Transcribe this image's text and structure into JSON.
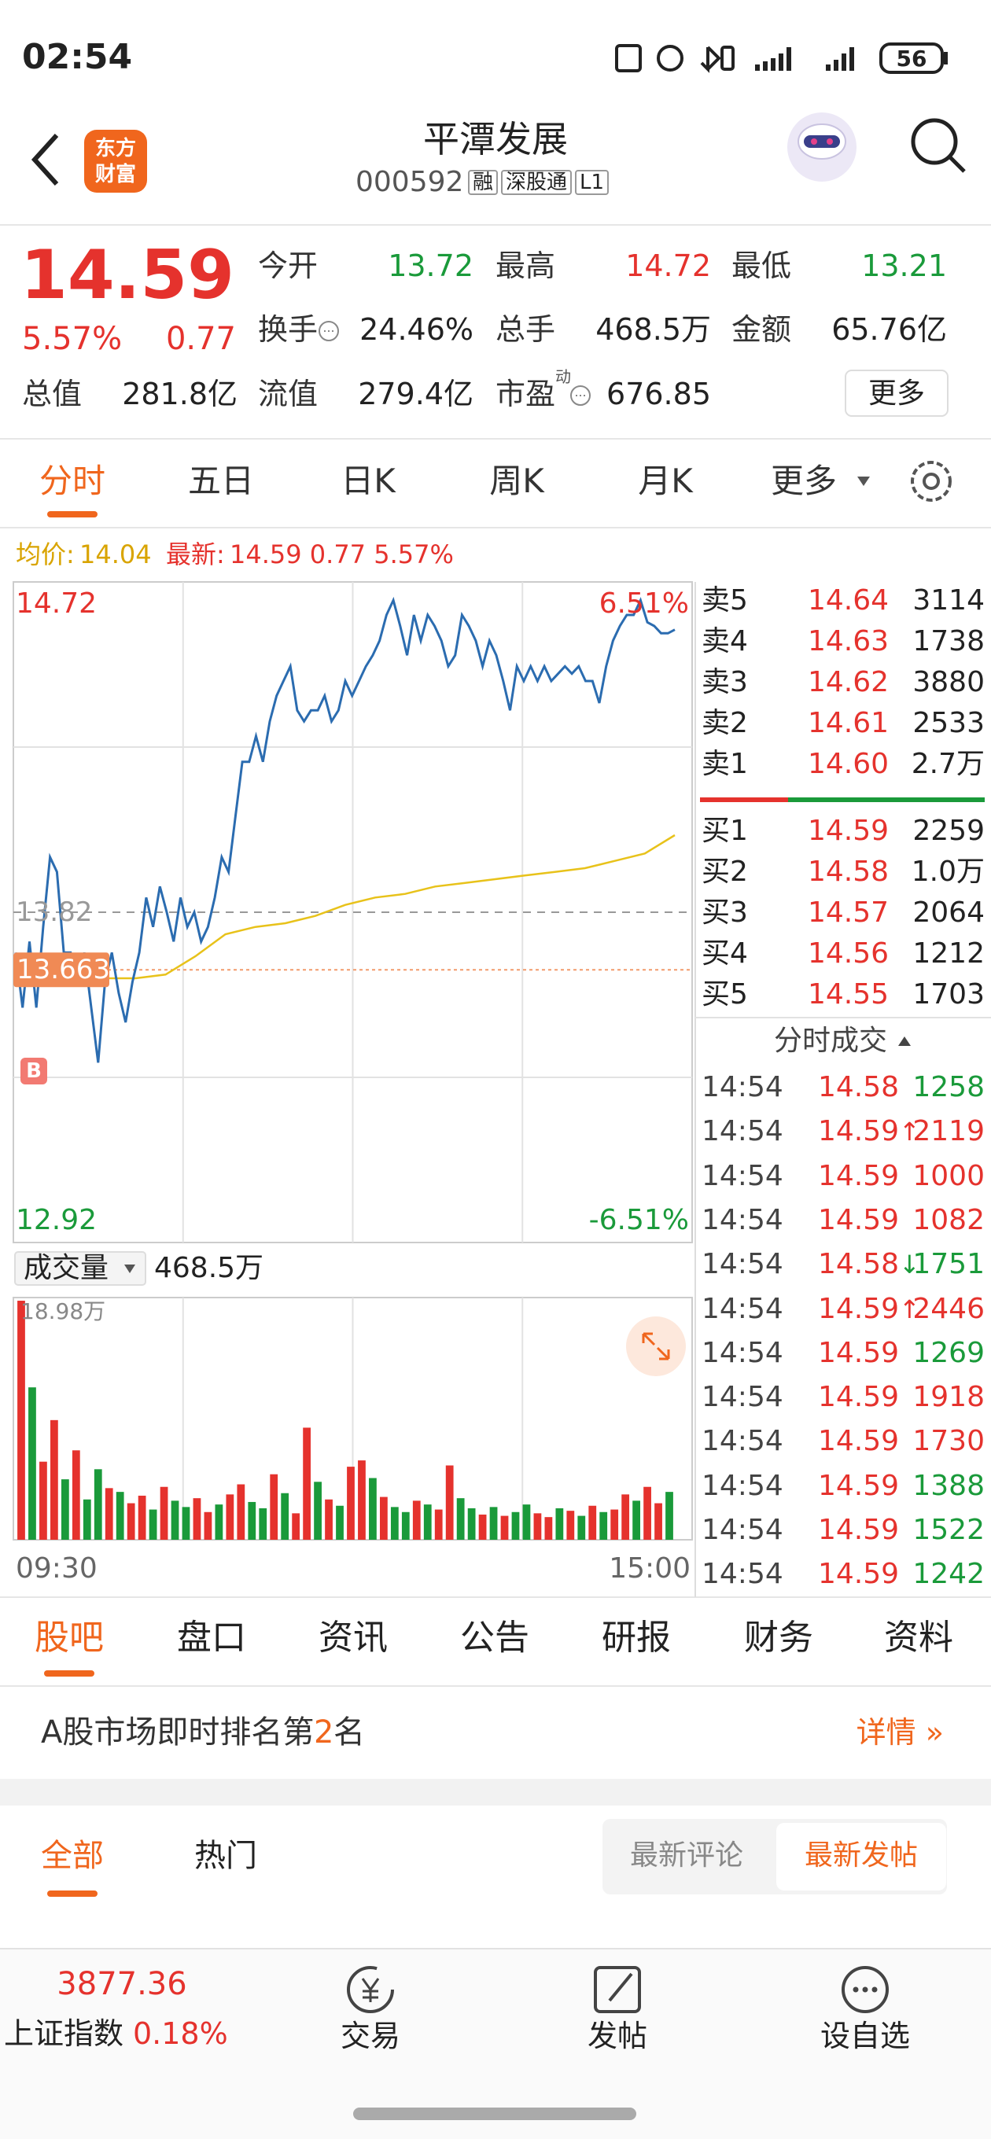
{
  "status_bar": {
    "time": "02:54",
    "battery": "56"
  },
  "header": {
    "logo": [
      "东方",
      "财富"
    ],
    "title": "平潭发展",
    "code": "000592",
    "tags": [
      "融",
      "深股通",
      "L1"
    ]
  },
  "quote": {
    "price": "14.59",
    "change_pct": "5.57%",
    "change": "0.77",
    "color": "#e5322d",
    "stats": [
      {
        "label": "今开",
        "value": "13.72",
        "color": "#1a9a3a"
      },
      {
        "label": "最高",
        "value": "14.72",
        "color": "#e5322d"
      },
      {
        "label": "最低",
        "value": "13.21",
        "color": "#1a9a3a"
      },
      {
        "label": "换手",
        "value": "24.46%",
        "color": "#222222"
      },
      {
        "label": "总手",
        "value": "468.5万",
        "color": "#222222"
      },
      {
        "label": "金额",
        "value": "65.76亿",
        "color": "#222222"
      },
      {
        "label": "总值",
        "value": "281.8亿",
        "color": "#222222"
      },
      {
        "label": "流值",
        "value": "279.4亿",
        "color": "#222222"
      },
      {
        "label": "市盈",
        "sup": "动",
        "value": "676.85",
        "color": "#222222"
      }
    ],
    "more": "更多"
  },
  "chart_tabs": {
    "items": [
      "分时",
      "五日",
      "日K",
      "周K",
      "月K",
      "更多"
    ],
    "active": 0
  },
  "info_line": {
    "avg_label": "均价:",
    "avg": "14.04",
    "avg_color": "#d9a400",
    "latest_label": "最新:",
    "latest": "14.59 0.77 5.57%",
    "latest_color": "#e5322d"
  },
  "chart_data": {
    "type": "line",
    "ylim": [
      12.92,
      14.72
    ],
    "top_pct": "6.51%",
    "bottom_pct": "-6.51%",
    "prev_close": 13.82,
    "avg_marker": 13.663,
    "buy_marker": "B",
    "x_labels": [
      "09:30",
      "15:00"
    ],
    "price_line": {
      "color": "#2b6cb0",
      "values": [
        13.71,
        13.56,
        13.74,
        13.56,
        13.78,
        13.97,
        13.93,
        13.71,
        13.71,
        13.63,
        13.71,
        13.56,
        13.41,
        13.63,
        13.71,
        13.6,
        13.52,
        13.63,
        13.71,
        13.86,
        13.78,
        13.89,
        13.82,
        13.74,
        13.86,
        13.78,
        13.82,
        13.74,
        13.78,
        13.86,
        13.97,
        13.93,
        14.08,
        14.23,
        14.23,
        14.3,
        14.23,
        14.34,
        14.41,
        14.45,
        14.49,
        14.37,
        14.34,
        14.37,
        14.37,
        14.41,
        14.34,
        14.37,
        14.45,
        14.41,
        14.45,
        14.49,
        14.52,
        14.56,
        14.63,
        14.67,
        14.6,
        14.52,
        14.63,
        14.56,
        14.63,
        14.6,
        14.56,
        14.49,
        14.52,
        14.63,
        14.6,
        14.56,
        14.49,
        14.56,
        14.52,
        14.45,
        14.37,
        14.49,
        14.45,
        14.49,
        14.45,
        14.49,
        14.45,
        14.47,
        14.49,
        14.47,
        14.49,
        14.45,
        14.45,
        14.39,
        14.49,
        14.56,
        14.6,
        14.63,
        14.63,
        14.67,
        14.61,
        14.6,
        14.58,
        14.58,
        14.59
      ]
    },
    "avg_line": {
      "color": "#e8c21a",
      "values": [
        13.66,
        13.65,
        13.64,
        13.64,
        13.64,
        13.65,
        13.7,
        13.76,
        13.78,
        13.79,
        13.81,
        13.84,
        13.86,
        13.87,
        13.89,
        13.9,
        13.91,
        13.92,
        13.93,
        13.94,
        13.96,
        13.98,
        14.03
      ]
    }
  },
  "volume_chart": {
    "label": "成交量",
    "total": "468.5万",
    "ymax": {
      "value": 18.98,
      "label": "18.98万"
    },
    "up_color": "#e5322d",
    "down_color": "#1a9a3a",
    "values": [
      18.98,
      12.1,
      6.2,
      9.5,
      4.8,
      7.1,
      3.2,
      5.6,
      4.1,
      3.8,
      2.9,
      3.5,
      2.4,
      4.2,
      3.1,
      2.6,
      3.3,
      2.2,
      2.8,
      3.6,
      4.4,
      3.0,
      2.5,
      5.2,
      3.7,
      2.1,
      8.9,
      4.6,
      3.2,
      2.7,
      5.8,
      6.3,
      4.9,
      3.4,
      2.6,
      2.2,
      3.1,
      2.8,
      2.4,
      5.9,
      3.3,
      2.5,
      2.0,
      2.6,
      1.9,
      2.2,
      2.8,
      2.1,
      1.8,
      2.5,
      2.3,
      1.9,
      2.7,
      2.2,
      2.4,
      3.6,
      3.1,
      4.2,
      2.9,
      3.8
    ],
    "rising": [
      true,
      false,
      true,
      true,
      false,
      true,
      false,
      false,
      true,
      false,
      true,
      true,
      false,
      true,
      false,
      false,
      true,
      true,
      false,
      true,
      true,
      false,
      false,
      true,
      false,
      true,
      true,
      false,
      true,
      false,
      true,
      true,
      false,
      true,
      false,
      false,
      true,
      false,
      true,
      true,
      false,
      false,
      true,
      false,
      true,
      false,
      false,
      true,
      true,
      false,
      true,
      false,
      true,
      false,
      true,
      true,
      false,
      true,
      true,
      false
    ]
  },
  "order_book": {
    "asks": [
      {
        "label": "卖5",
        "price": "14.64",
        "volume": "3114"
      },
      {
        "label": "卖4",
        "price": "14.63",
        "volume": "1738"
      },
      {
        "label": "卖3",
        "price": "14.62",
        "volume": "3880"
      },
      {
        "label": "卖2",
        "price": "14.61",
        "volume": "2533"
      },
      {
        "label": "卖1",
        "price": "14.60",
        "volume": "2.7万"
      }
    ],
    "bids": [
      {
        "label": "买1",
        "price": "14.59",
        "volume": "2259"
      },
      {
        "label": "买2",
        "price": "14.58",
        "volume": "1.0万"
      },
      {
        "label": "买3",
        "price": "14.57",
        "volume": "2064"
      },
      {
        "label": "买4",
        "price": "14.56",
        "volume": "1212"
      },
      {
        "label": "买5",
        "price": "14.55",
        "volume": "1703"
      }
    ],
    "trades_title": "分时成交",
    "trades": [
      {
        "time": "14:54",
        "price": "14.58",
        "volume": "1258",
        "color": "#1a9a3a"
      },
      {
        "time": "14:54",
        "price": "14.59",
        "arrow": "↑",
        "volume": "2119",
        "color": "#e5322d"
      },
      {
        "time": "14:54",
        "price": "14.59",
        "volume": "1000",
        "color": "#e5322d"
      },
      {
        "time": "14:54",
        "price": "14.59",
        "volume": "1082",
        "color": "#e5322d"
      },
      {
        "time": "14:54",
        "price": "14.58",
        "arrow": "↓",
        "volume": "1751",
        "color": "#1a9a3a"
      },
      {
        "time": "14:54",
        "price": "14.59",
        "arrow": "↑",
        "volume": "2446",
        "color": "#e5322d"
      },
      {
        "time": "14:54",
        "price": "14.59",
        "volume": "1269",
        "color": "#1a9a3a"
      },
      {
        "time": "14:54",
        "price": "14.59",
        "volume": "1918",
        "color": "#e5322d"
      },
      {
        "time": "14:54",
        "price": "14.59",
        "volume": "1730",
        "color": "#e5322d"
      },
      {
        "time": "14:54",
        "price": "14.59",
        "volume": "1388",
        "color": "#1a9a3a"
      },
      {
        "time": "14:54",
        "price": "14.59",
        "volume": "1522",
        "color": "#1a9a3a"
      },
      {
        "time": "14:54",
        "price": "14.59",
        "volume": "1242",
        "color": "#1a9a3a"
      }
    ]
  },
  "f10_tabs": {
    "items": [
      "股吧",
      "盘口",
      "资讯",
      "公告",
      "研报",
      "财务",
      "资料"
    ],
    "active": 0
  },
  "banner": {
    "text": "A股市场即时排名第",
    "rank": "2",
    "suffix": "名",
    "link": "详情 »"
  },
  "feed_tabs": {
    "items": [
      "全部",
      "热门"
    ],
    "active": 0,
    "sort": [
      "最新评论",
      "最新发帖"
    ],
    "sort_active": 1
  },
  "bottom_nav": {
    "index_value": "3877.36",
    "index_name": "上证指数",
    "index_change": "0.18%",
    "items": [
      "交易",
      "发帖",
      "设自选"
    ]
  }
}
